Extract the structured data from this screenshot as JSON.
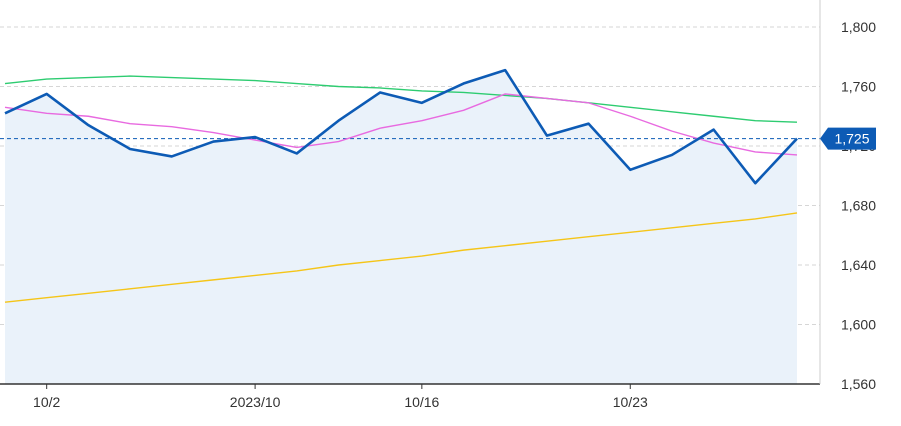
{
  "chart_data": {
    "type": "line",
    "title": "",
    "xlabel": "",
    "ylabel": "",
    "ylim": [
      1560,
      1800
    ],
    "yticks": [
      1560,
      1600,
      1640,
      1680,
      1720,
      1760,
      1800
    ],
    "ytick_labels": [
      "1,560",
      "1,600",
      "1,640",
      "1,680",
      "1,720",
      "1,760",
      "1,800"
    ],
    "x_index_range": [
      0,
      19
    ],
    "xticks": [
      {
        "index": 1,
        "label": "10/2"
      },
      {
        "index": 6,
        "label": "2023/10"
      },
      {
        "index": 10,
        "label": "10/16"
      },
      {
        "index": 15,
        "label": "10/23"
      }
    ],
    "grid": true,
    "last_price": {
      "value": 1725,
      "label": "1,725",
      "color": "#0d5bb5"
    },
    "series": [
      {
        "style": "area-line",
        "color": "#0d5bb5",
        "fill": "#eaf2fa",
        "values": [
          1742,
          1755,
          1734,
          1718,
          1713,
          1723,
          1726,
          1715,
          1737,
          1756,
          1749,
          1762,
          1771,
          1727,
          1735,
          1704,
          1714,
          1731,
          1695,
          1725
        ]
      },
      {
        "style": "line",
        "color": "#e86ae0",
        "values": [
          1746,
          1742,
          1740,
          1735,
          1733,
          1729,
          1724,
          1719,
          1723,
          1732,
          1737,
          1744,
          1755,
          1752,
          1749,
          1740,
          1730,
          1722,
          1716,
          1714
        ]
      },
      {
        "style": "line",
        "color": "#2ecc71",
        "values": [
          1762,
          1765,
          1766,
          1767,
          1766,
          1765,
          1764,
          1762,
          1760,
          1759,
          1757,
          1756,
          1754,
          1752,
          1749,
          1746,
          1743,
          1740,
          1737,
          1736
        ]
      },
      {
        "style": "line",
        "color": "#f5c518",
        "values": [
          1615,
          1618,
          1621,
          1624,
          1627,
          1630,
          1633,
          1636,
          1640,
          1643,
          1646,
          1650,
          1653,
          1656,
          1659,
          1662,
          1665,
          1668,
          1671,
          1675
        ]
      }
    ]
  }
}
